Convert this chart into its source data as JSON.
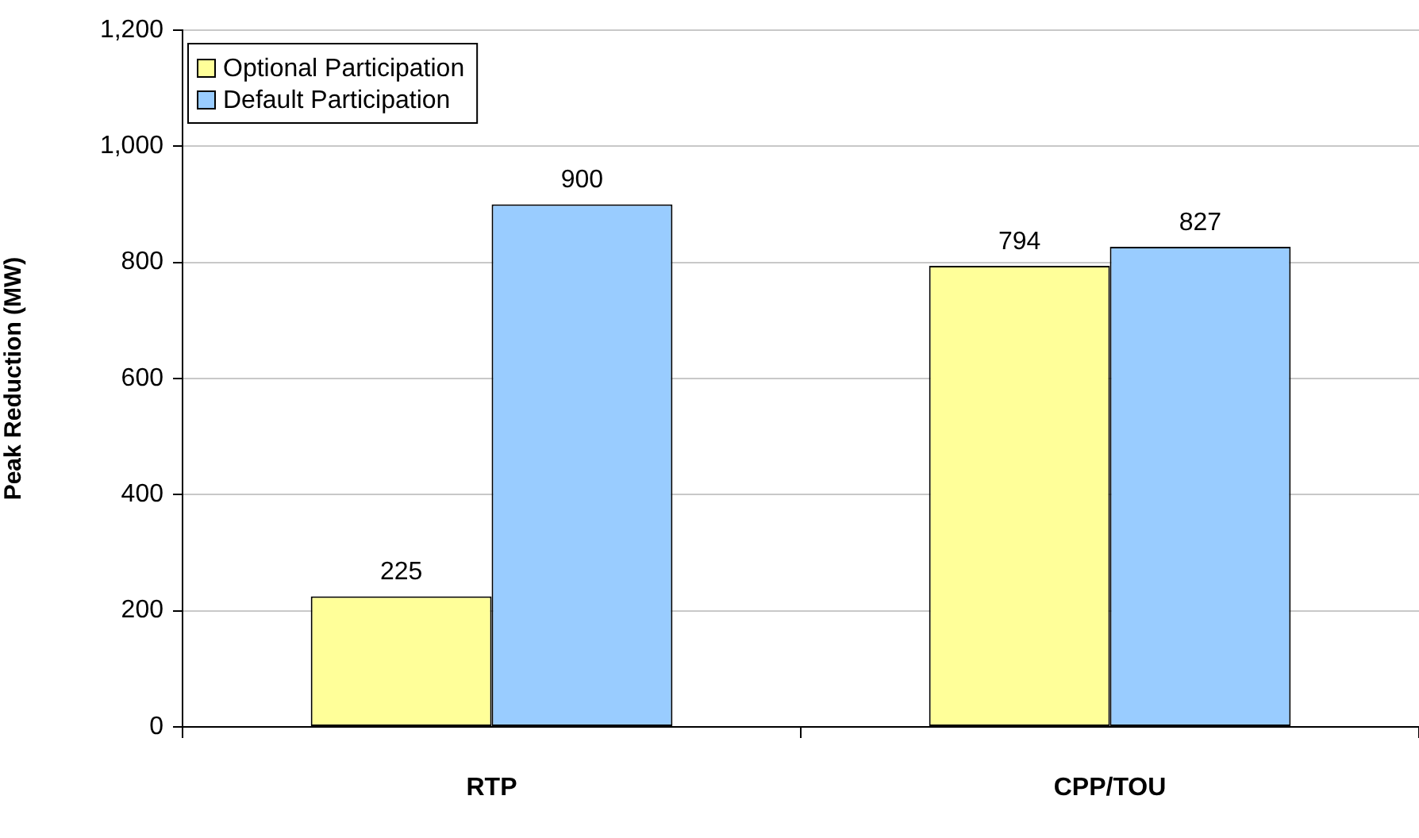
{
  "chart_data": {
    "type": "bar",
    "categories": [
      "RTP",
      "CPP/TOU"
    ],
    "series": [
      {
        "name": "Optional Participation",
        "color": "#ffff99",
        "values": [
          225,
          794
        ]
      },
      {
        "name": "Default Participation",
        "color": "#99ccff",
        "values": [
          900,
          827
        ]
      }
    ],
    "ylabel": "Peak Reduction (MW)",
    "ylim": [
      0,
      1200
    ],
    "yticks": [
      0,
      200,
      400,
      600,
      800,
      {
        "value": 1000,
        "label": "1,000"
      },
      {
        "value": 1200,
        "label": "1,200"
      }
    ],
    "grid": "y",
    "legend": "top left",
    "data_labels": true
  }
}
